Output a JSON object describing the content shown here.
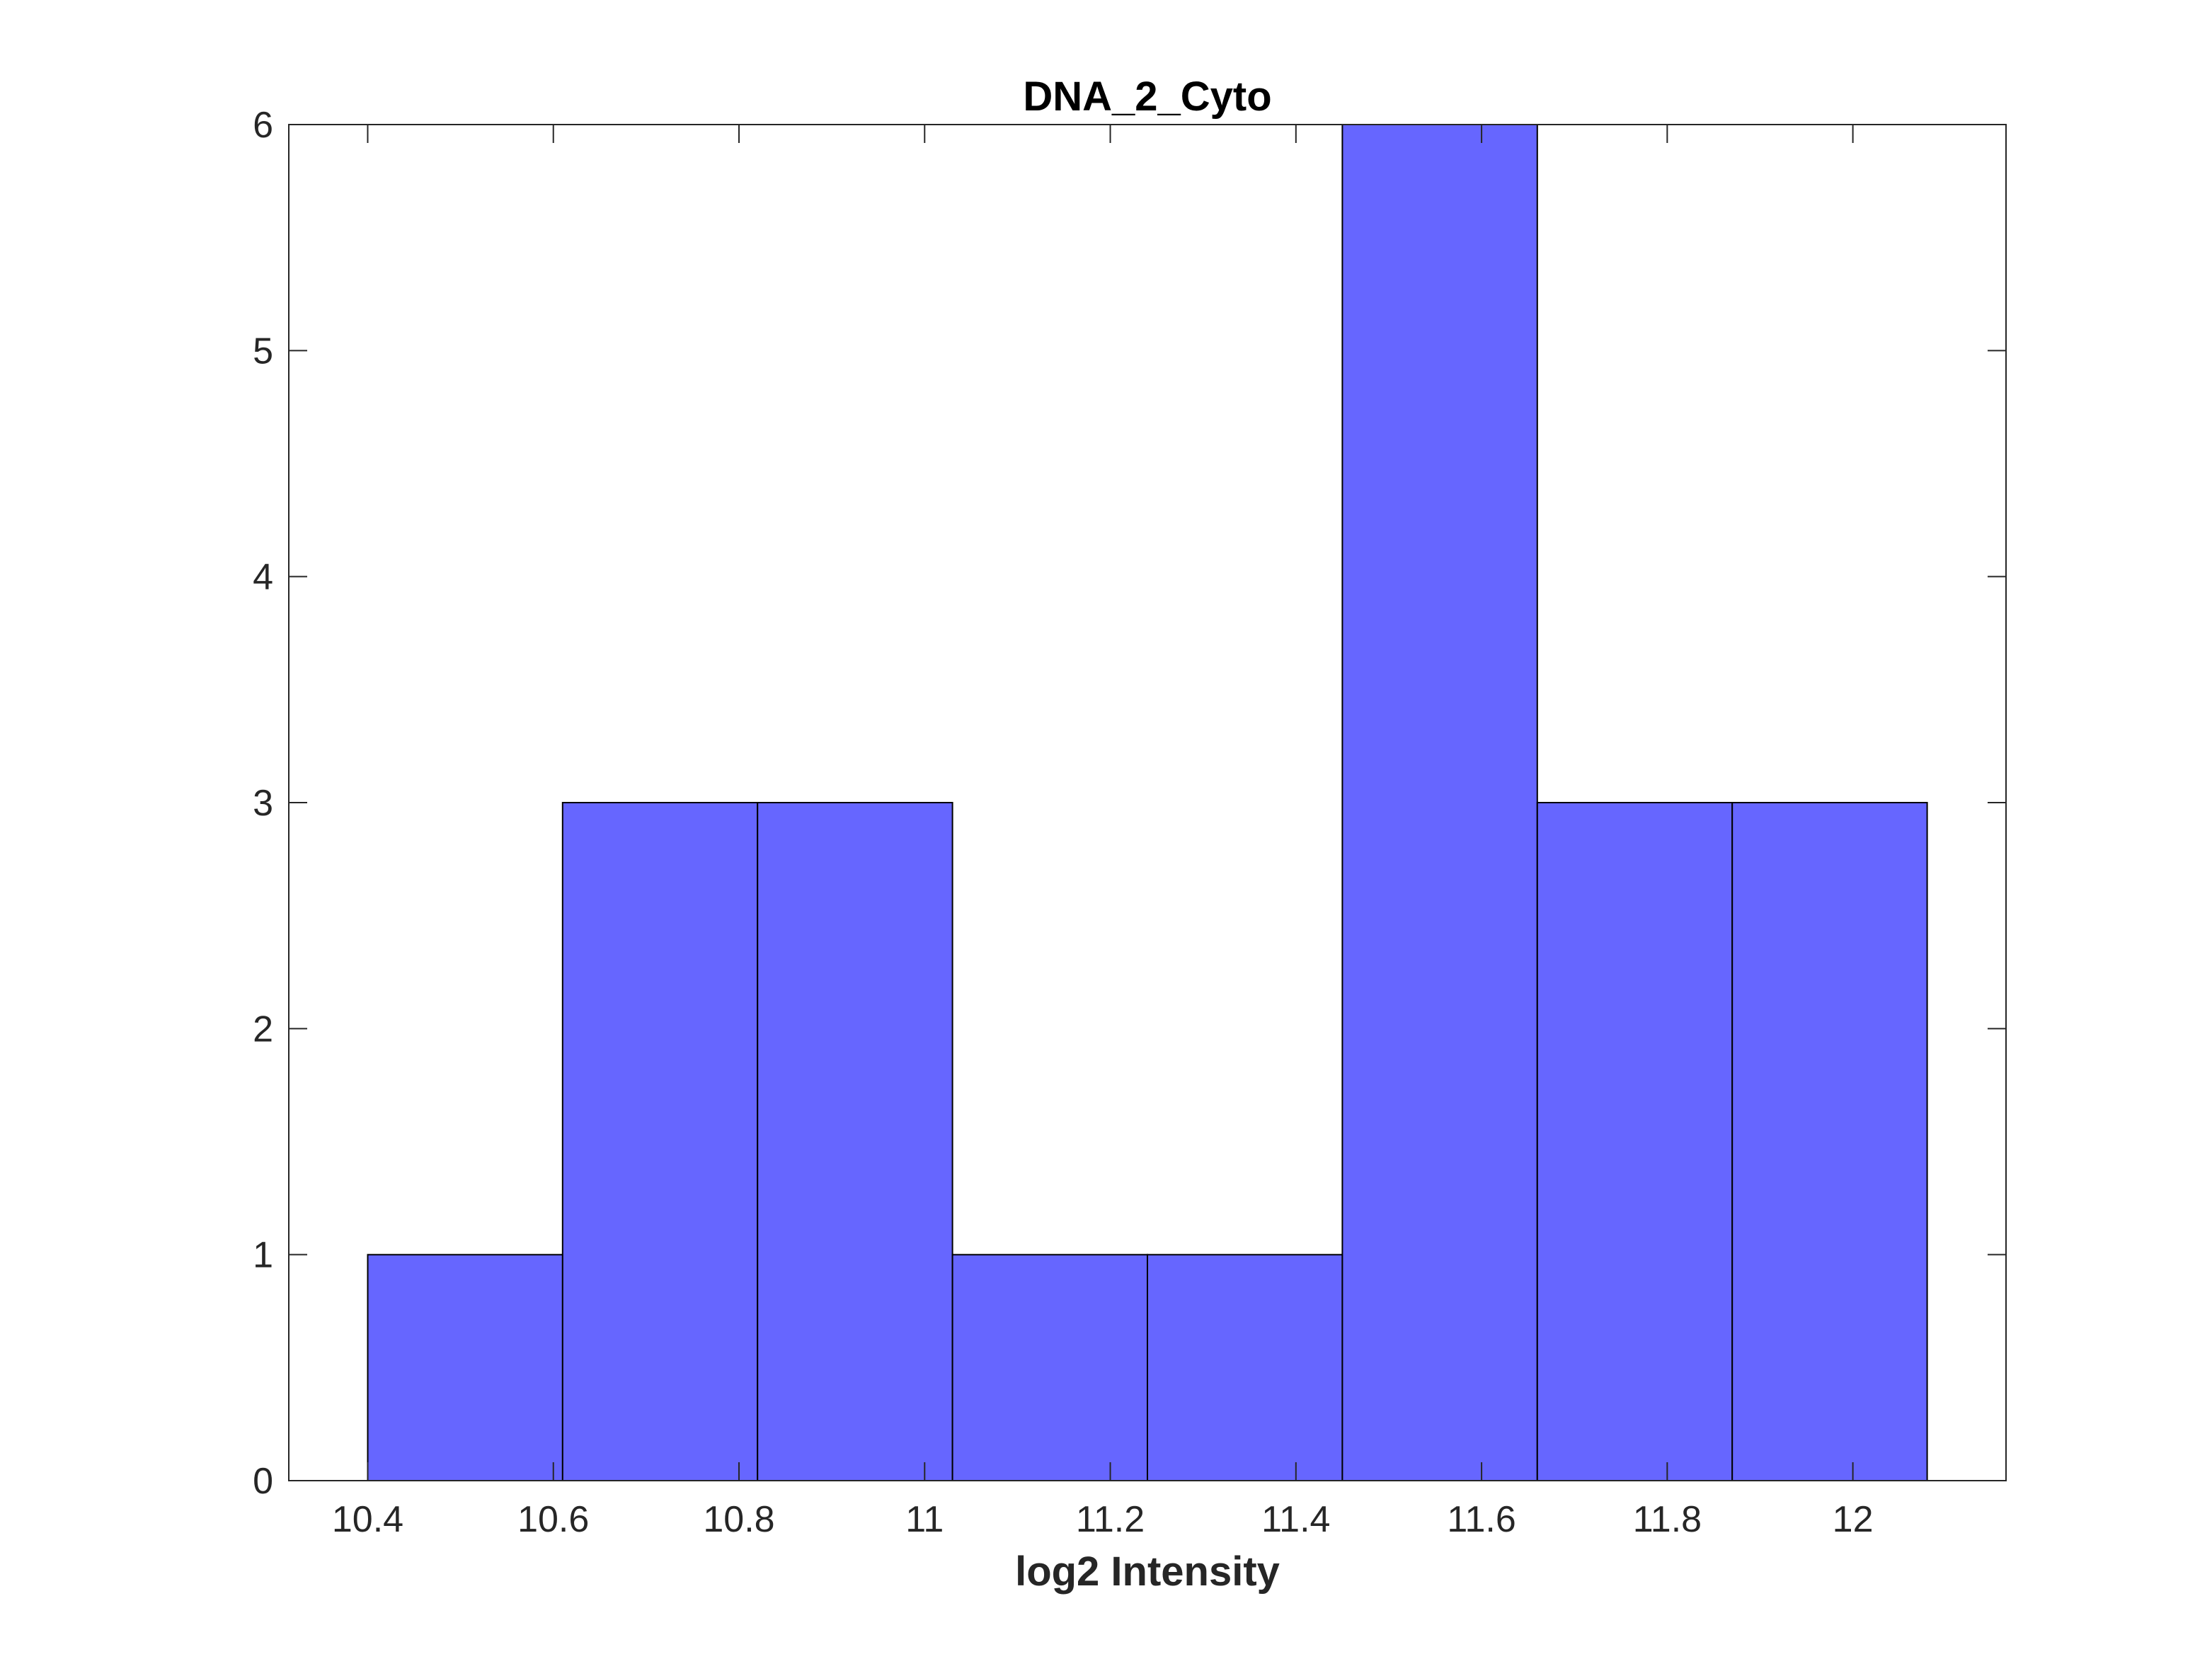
{
  "chart_data": {
    "type": "bar",
    "subtype": "histogram",
    "title": "DNA_2_Cyto",
    "xlabel": "log2 Intensity",
    "ylabel": "",
    "xlim": [
      10.315,
      12.165
    ],
    "ylim": [
      0,
      6
    ],
    "bins": [
      {
        "start": 10.4,
        "end": 10.61,
        "count": 1
      },
      {
        "start": 10.61,
        "end": 10.82,
        "count": 3
      },
      {
        "start": 10.82,
        "end": 11.03,
        "count": 3
      },
      {
        "start": 11.03,
        "end": 11.24,
        "count": 1
      },
      {
        "start": 11.24,
        "end": 11.45,
        "count": 1
      },
      {
        "start": 11.45,
        "end": 11.66,
        "count": 6
      },
      {
        "start": 11.66,
        "end": 11.87,
        "count": 3
      },
      {
        "start": 11.87,
        "end": 12.08,
        "count": 3
      }
    ],
    "xticks": [
      {
        "value": 10.4,
        "label": "10.4"
      },
      {
        "value": 10.6,
        "label": "10.6"
      },
      {
        "value": 10.8,
        "label": "10.8"
      },
      {
        "value": 11.0,
        "label": "11"
      },
      {
        "value": 11.2,
        "label": "11.2"
      },
      {
        "value": 11.4,
        "label": "11.4"
      },
      {
        "value": 11.6,
        "label": "11.6"
      },
      {
        "value": 11.8,
        "label": "11.8"
      },
      {
        "value": 12.0,
        "label": "12"
      }
    ],
    "yticks": [
      {
        "value": 0,
        "label": "0"
      },
      {
        "value": 1,
        "label": "1"
      },
      {
        "value": 2,
        "label": "2"
      },
      {
        "value": 3,
        "label": "3"
      },
      {
        "value": 4,
        "label": "4"
      },
      {
        "value": 5,
        "label": "5"
      },
      {
        "value": 6,
        "label": "6"
      }
    ],
    "grid": false,
    "legend": "none",
    "colors": {
      "bar_fill": "#6666ff",
      "bar_edge": "#000000",
      "axis": "#262626"
    }
  }
}
